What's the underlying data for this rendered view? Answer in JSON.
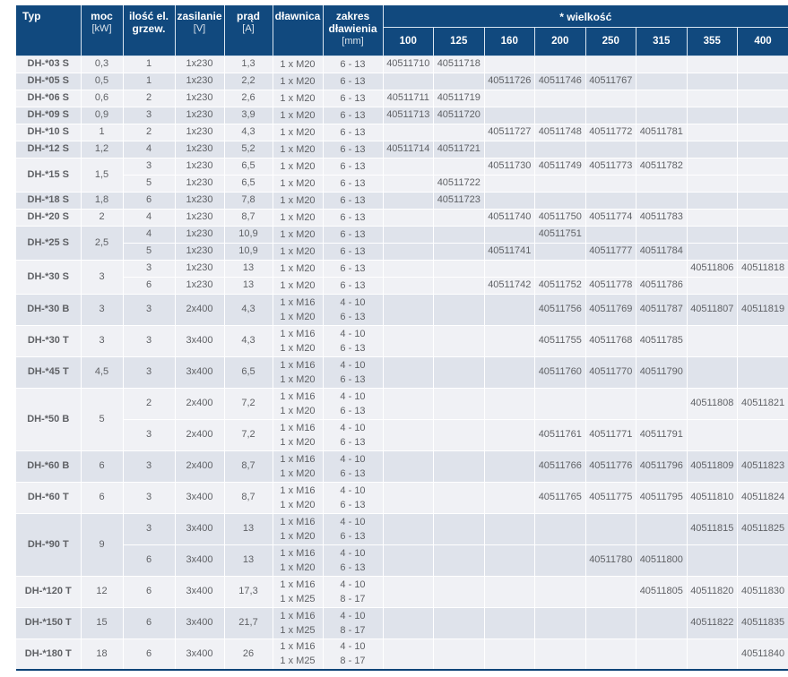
{
  "colors": {
    "header_bg": "#11497e",
    "header_separator": "#d9e5f1",
    "row_light": "#f0f1f5",
    "row_dark": "#dfe3eb",
    "grid_line": "#ffffff",
    "typ_text": "#222222",
    "data_text": "#5f6165",
    "header_text": "#ffffff",
    "bottom_border": "#0d4377"
  },
  "table": {
    "headers": {
      "typ": "Typ",
      "moc": [
        "moc",
        "[kW]"
      ],
      "grzew": [
        "ilość el.",
        "grzew."
      ],
      "zasilanie": [
        "zasilanie",
        "[V]"
      ],
      "prad": [
        "prąd",
        "[A]"
      ],
      "dlawnica": [
        "dławnica"
      ],
      "zakres": [
        "zakres",
        "dławienia",
        "[mm]"
      ],
      "wielkosc": "* wielkość",
      "sizes": [
        "100",
        "125",
        "160",
        "200",
        "250",
        "315",
        "355",
        "400"
      ]
    },
    "groups": [
      {
        "typ": "DH-*03 S",
        "moc": "0,3",
        "rows": [
          {
            "grzew": "1",
            "zas": "1x230",
            "prad": "1,3",
            "dlaw": [
              "1 x M20"
            ],
            "zakr": [
              "6 - 13"
            ],
            "sizes": [
              "40511710",
              "40511718",
              "",
              "",
              "",
              "",
              "",
              ""
            ]
          }
        ]
      },
      {
        "typ": "DH-*05 S",
        "moc": "0,5",
        "rows": [
          {
            "grzew": "1",
            "zas": "1x230",
            "prad": "2,2",
            "dlaw": [
              "1 x M20"
            ],
            "zakr": [
              "6 - 13"
            ],
            "sizes": [
              "",
              "",
              "40511726",
              "40511746",
              "40511767",
              "",
              "",
              ""
            ]
          }
        ]
      },
      {
        "typ": "DH-*06 S",
        "moc": "0,6",
        "rows": [
          {
            "grzew": "2",
            "zas": "1x230",
            "prad": "2,6",
            "dlaw": [
              "1 x M20"
            ],
            "zakr": [
              "6 - 13"
            ],
            "sizes": [
              "40511711",
              "40511719",
              "",
              "",
              "",
              "",
              "",
              ""
            ]
          }
        ]
      },
      {
        "typ": "DH-*09 S",
        "moc": "0,9",
        "rows": [
          {
            "grzew": "3",
            "zas": "1x230",
            "prad": "3,9",
            "dlaw": [
              "1 x M20"
            ],
            "zakr": [
              "6 - 13"
            ],
            "sizes": [
              "40511713",
              "40511720",
              "",
              "",
              "",
              "",
              "",
              ""
            ]
          }
        ]
      },
      {
        "typ": "DH-*10 S",
        "moc": "1",
        "rows": [
          {
            "grzew": "2",
            "zas": "1x230",
            "prad": "4,3",
            "dlaw": [
              "1 x M20"
            ],
            "zakr": [
              "6 - 13"
            ],
            "sizes": [
              "",
              "",
              "40511727",
              "40511748",
              "40511772",
              "40511781",
              "",
              ""
            ]
          }
        ]
      },
      {
        "typ": "DH-*12 S",
        "moc": "1,2",
        "rows": [
          {
            "grzew": "4",
            "zas": "1x230",
            "prad": "5,2",
            "dlaw": [
              "1 x M20"
            ],
            "zakr": [
              "6 - 13"
            ],
            "sizes": [
              "40511714",
              "40511721",
              "",
              "",
              "",
              "",
              "",
              ""
            ]
          }
        ]
      },
      {
        "typ": "DH-*15 S",
        "moc": "1,5",
        "rows": [
          {
            "grzew": "3",
            "zas": "1x230",
            "prad": "6,5",
            "dlaw": [
              "1 x M20"
            ],
            "zakr": [
              "6 - 13"
            ],
            "sizes": [
              "",
              "",
              "40511730",
              "40511749",
              "40511773",
              "40511782",
              "",
              ""
            ]
          },
          {
            "grzew": "5",
            "zas": "1x230",
            "prad": "6,5",
            "dlaw": [
              "1 x M20"
            ],
            "zakr": [
              "6 - 13"
            ],
            "sizes": [
              "",
              "40511722",
              "",
              "",
              "",
              "",
              "",
              ""
            ]
          }
        ]
      },
      {
        "typ": "DH-*18 S",
        "moc": "1,8",
        "rows": [
          {
            "grzew": "6",
            "zas": "1x230",
            "prad": "7,8",
            "dlaw": [
              "1 x M20"
            ],
            "zakr": [
              "6 - 13"
            ],
            "sizes": [
              "",
              "40511723",
              "",
              "",
              "",
              "",
              "",
              ""
            ]
          }
        ]
      },
      {
        "typ": "DH-*20 S",
        "moc": "2",
        "rows": [
          {
            "grzew": "4",
            "zas": "1x230",
            "prad": "8,7",
            "dlaw": [
              "1 x M20"
            ],
            "zakr": [
              "6 - 13"
            ],
            "sizes": [
              "",
              "",
              "40511740",
              "40511750",
              "40511774",
              "40511783",
              "",
              ""
            ]
          }
        ]
      },
      {
        "typ": "DH-*25 S",
        "moc": "2,5",
        "rows": [
          {
            "grzew": "4",
            "zas": "1x230",
            "prad": "10,9",
            "dlaw": [
              "1 x M20"
            ],
            "zakr": [
              "6 - 13"
            ],
            "sizes": [
              "",
              "",
              "",
              "40511751",
              "",
              "",
              "",
              ""
            ]
          },
          {
            "grzew": "5",
            "zas": "1x230",
            "prad": "10,9",
            "dlaw": [
              "1 x M20"
            ],
            "zakr": [
              "6 - 13"
            ],
            "sizes": [
              "",
              "",
              "40511741",
              "",
              "40511777",
              "40511784",
              "",
              ""
            ]
          }
        ]
      },
      {
        "typ": "DH-*30 S",
        "moc": "3",
        "rows": [
          {
            "grzew": "3",
            "zas": "1x230",
            "prad": "13",
            "dlaw": [
              "1 x M20"
            ],
            "zakr": [
              "6 - 13"
            ],
            "sizes": [
              "",
              "",
              "",
              "",
              "",
              "",
              "40511806",
              "40511818"
            ]
          },
          {
            "grzew": "6",
            "zas": "1x230",
            "prad": "13",
            "dlaw": [
              "1 x M20"
            ],
            "zakr": [
              "6 - 13"
            ],
            "sizes": [
              "",
              "",
              "40511742",
              "40511752",
              "40511778",
              "40511786",
              "",
              ""
            ]
          }
        ]
      },
      {
        "typ": "DH-*30 B",
        "moc": "3",
        "rows": [
          {
            "grzew": "3",
            "zas": "2x400",
            "prad": "4,3",
            "dlaw": [
              "1 x M16",
              "1 x M20"
            ],
            "zakr": [
              "4 - 10",
              "6 - 13"
            ],
            "sizes": [
              "",
              "",
              "",
              "40511756",
              "40511769",
              "40511787",
              "40511807",
              "40511819"
            ]
          }
        ]
      },
      {
        "typ": "DH-*30 T",
        "moc": "3",
        "rows": [
          {
            "grzew": "3",
            "zas": "3x400",
            "prad": "4,3",
            "dlaw": [
              "1 x M16",
              "1 x M20"
            ],
            "zakr": [
              "4 - 10",
              "6 - 13"
            ],
            "sizes": [
              "",
              "",
              "",
              "40511755",
              "40511768",
              "40511785",
              "",
              ""
            ]
          }
        ]
      },
      {
        "typ": "DH-*45 T",
        "moc": "4,5",
        "rows": [
          {
            "grzew": "3",
            "zas": "3x400",
            "prad": "6,5",
            "dlaw": [
              "1 x M16",
              "1 x M20"
            ],
            "zakr": [
              "4 - 10",
              "6 - 13"
            ],
            "sizes": [
              "",
              "",
              "",
              "40511760",
              "40511770",
              "40511790",
              "",
              ""
            ]
          }
        ]
      },
      {
        "typ": "DH-*50 B",
        "moc": "5",
        "rows": [
          {
            "grzew": "2",
            "zas": "2x400",
            "prad": "7,2",
            "dlaw": [
              "1 x M16",
              "1 x M20"
            ],
            "zakr": [
              "4 - 10",
              "6 - 13"
            ],
            "sizes": [
              "",
              "",
              "",
              "",
              "",
              "",
              "40511808",
              "40511821"
            ]
          },
          {
            "grzew": "3",
            "zas": "2x400",
            "prad": "7,2",
            "dlaw": [
              "1 x M16",
              "1 x M20"
            ],
            "zakr": [
              "4 - 10",
              "6 - 13"
            ],
            "sizes": [
              "",
              "",
              "",
              "40511761",
              "40511771",
              "40511791",
              "",
              ""
            ]
          }
        ]
      },
      {
        "typ": "DH-*60 B",
        "moc": "6",
        "rows": [
          {
            "grzew": "3",
            "zas": "2x400",
            "prad": "8,7",
            "dlaw": [
              "1 x M16",
              "1 x M20"
            ],
            "zakr": [
              "4 - 10",
              "6 - 13"
            ],
            "sizes": [
              "",
              "",
              "",
              "40511766",
              "40511776",
              "40511796",
              "40511809",
              "40511823"
            ]
          }
        ]
      },
      {
        "typ": "DH-*60 T",
        "moc": "6",
        "rows": [
          {
            "grzew": "3",
            "zas": "3x400",
            "prad": "8,7",
            "dlaw": [
              "1 x M16",
              "1 x M20"
            ],
            "zakr": [
              "4 - 10",
              "6 - 13"
            ],
            "sizes": [
              "",
              "",
              "",
              "40511765",
              "40511775",
              "40511795",
              "40511810",
              "40511824"
            ]
          }
        ]
      },
      {
        "typ": "DH-*90 T",
        "moc": "9",
        "rows": [
          {
            "grzew": "3",
            "zas": "3x400",
            "prad": "13",
            "dlaw": [
              "1 x M16",
              "1 x M20"
            ],
            "zakr": [
              "4 - 10",
              "6 - 13"
            ],
            "sizes": [
              "",
              "",
              "",
              "",
              "",
              "",
              "40511815",
              "40511825"
            ]
          },
          {
            "grzew": "6",
            "zas": "3x400",
            "prad": "13",
            "dlaw": [
              "1 x M16",
              "1 x M20"
            ],
            "zakr": [
              "4 - 10",
              "6 - 13"
            ],
            "sizes": [
              "",
              "",
              "",
              "",
              "40511780",
              "40511800",
              "",
              ""
            ]
          }
        ]
      },
      {
        "typ": "DH-*120 T",
        "moc": "12",
        "rows": [
          {
            "grzew": "6",
            "zas": "3x400",
            "prad": "17,3",
            "dlaw": [
              "1 x M16",
              "1 x M25"
            ],
            "zakr": [
              "4 - 10",
              "8 - 17"
            ],
            "sizes": [
              "",
              "",
              "",
              "",
              "",
              "40511805",
              "40511820",
              "40511830"
            ]
          }
        ]
      },
      {
        "typ": "DH-*150 T",
        "moc": "15",
        "rows": [
          {
            "grzew": "6",
            "zas": "3x400",
            "prad": "21,7",
            "dlaw": [
              "1 x M16",
              "1 x M25"
            ],
            "zakr": [
              "4 - 10",
              "8 - 17"
            ],
            "sizes": [
              "",
              "",
              "",
              "",
              "",
              "",
              "40511822",
              "40511835"
            ]
          }
        ]
      },
      {
        "typ": "DH-*180 T",
        "moc": "18",
        "rows": [
          {
            "grzew": "6",
            "zas": "3x400",
            "prad": "26",
            "dlaw": [
              "1 x M16",
              "1 x M25"
            ],
            "zakr": [
              "4 - 10",
              "8 - 17"
            ],
            "sizes": [
              "",
              "",
              "",
              "",
              "",
              "",
              "",
              "40511840"
            ]
          }
        ]
      }
    ]
  }
}
